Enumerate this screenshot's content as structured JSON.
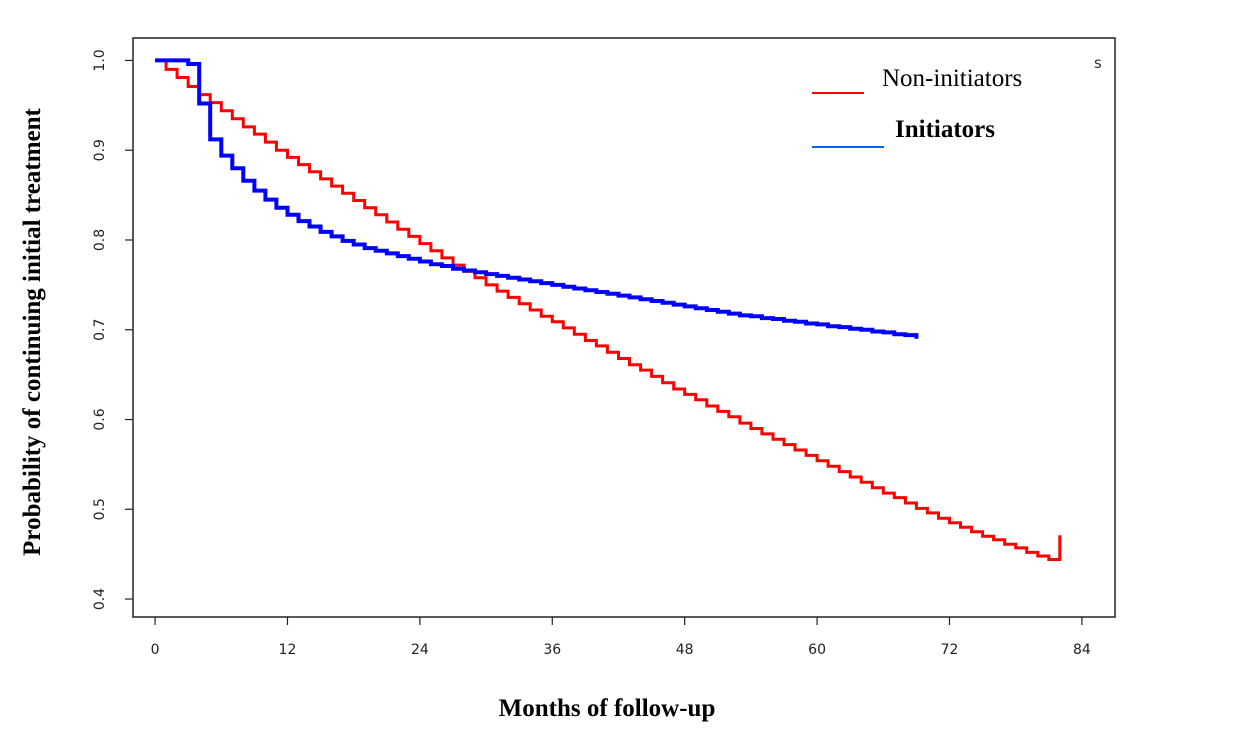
{
  "chart_data": {
    "type": "line",
    "step": true,
    "title": "",
    "xlabel": "Months of follow-up",
    "ylabel": "Probability of continuing initial treatment",
    "xlim": [
      -2,
      87
    ],
    "ylim": [
      0.38,
      1.025
    ],
    "xticks": [
      0,
      12,
      24,
      36,
      48,
      60,
      72,
      84
    ],
    "xtick_labels": [
      "0",
      "12",
      "24",
      "36",
      "48",
      "60",
      "72",
      "84"
    ],
    "yticks": [
      0.4,
      0.5,
      0.6,
      0.7,
      0.8,
      0.9,
      1.0
    ],
    "ytick_labels": [
      "0.4",
      "0.5",
      "0.6",
      "0.7",
      "0.8",
      "0.9",
      "1.0"
    ],
    "grid": false,
    "legend_position": "top-right",
    "legend_fragment": "s",
    "series": [
      {
        "name": "Non-initiators",
        "color": "#ff0000",
        "bold_label": false,
        "x": [
          0,
          1,
          2,
          3,
          4,
          5,
          6,
          7,
          8,
          9,
          10,
          11,
          12,
          13,
          14,
          15,
          16,
          17,
          18,
          19,
          20,
          21,
          22,
          23,
          24,
          25,
          26,
          27,
          28,
          29,
          30,
          31,
          32,
          33,
          34,
          35,
          36,
          37,
          38,
          39,
          40,
          41,
          42,
          43,
          44,
          45,
          46,
          47,
          48,
          49,
          50,
          51,
          52,
          53,
          54,
          55,
          56,
          57,
          58,
          59,
          60,
          61,
          62,
          63,
          64,
          65,
          66,
          67,
          68,
          69,
          70,
          71,
          72,
          73,
          74,
          75,
          76,
          77,
          78,
          79,
          80,
          81,
          82
        ],
        "y": [
          1.0,
          0.99,
          0.981,
          0.971,
          0.962,
          0.953,
          0.944,
          0.935,
          0.926,
          0.918,
          0.909,
          0.9,
          0.892,
          0.884,
          0.876,
          0.868,
          0.86,
          0.852,
          0.844,
          0.836,
          0.828,
          0.82,
          0.812,
          0.804,
          0.796,
          0.788,
          0.78,
          0.772,
          0.765,
          0.758,
          0.75,
          0.743,
          0.736,
          0.729,
          0.722,
          0.715,
          0.709,
          0.702,
          0.695,
          0.688,
          0.682,
          0.675,
          0.668,
          0.661,
          0.655,
          0.648,
          0.641,
          0.634,
          0.628,
          0.622,
          0.615,
          0.609,
          0.603,
          0.596,
          0.59,
          0.584,
          0.578,
          0.572,
          0.566,
          0.56,
          0.554,
          0.548,
          0.542,
          0.536,
          0.53,
          0.524,
          0.518,
          0.513,
          0.507,
          0.501,
          0.496,
          0.49,
          0.485,
          0.48,
          0.475,
          0.47,
          0.466,
          0.461,
          0.457,
          0.452,
          0.448,
          0.444,
          0.471
        ]
      },
      {
        "name": "Initiators",
        "color": "#0000ff",
        "bold_label": true,
        "x": [
          0,
          1,
          2,
          3,
          4,
          5,
          6,
          7,
          8,
          9,
          10,
          11,
          12,
          13,
          14,
          15,
          16,
          17,
          18,
          19,
          20,
          21,
          22,
          23,
          24,
          25,
          26,
          27,
          28,
          29,
          30,
          31,
          32,
          33,
          34,
          35,
          36,
          37,
          38,
          39,
          40,
          41,
          42,
          43,
          44,
          45,
          46,
          47,
          48,
          49,
          50,
          51,
          52,
          53,
          54,
          55,
          56,
          57,
          58,
          59,
          60,
          61,
          62,
          63,
          64,
          65,
          66,
          67,
          68,
          69
        ],
        "y": [
          1.0,
          1.0,
          1.0,
          0.996,
          0.952,
          0.912,
          0.894,
          0.88,
          0.866,
          0.855,
          0.845,
          0.836,
          0.828,
          0.821,
          0.815,
          0.809,
          0.804,
          0.799,
          0.795,
          0.791,
          0.788,
          0.785,
          0.782,
          0.779,
          0.776,
          0.773,
          0.771,
          0.768,
          0.766,
          0.764,
          0.762,
          0.76,
          0.758,
          0.756,
          0.754,
          0.752,
          0.75,
          0.748,
          0.746,
          0.744,
          0.742,
          0.74,
          0.738,
          0.736,
          0.734,
          0.732,
          0.73,
          0.728,
          0.726,
          0.724,
          0.722,
          0.72,
          0.718,
          0.716,
          0.715,
          0.713,
          0.712,
          0.71,
          0.709,
          0.707,
          0.706,
          0.704,
          0.703,
          0.701,
          0.7,
          0.698,
          0.697,
          0.695,
          0.694,
          0.69
        ]
      }
    ]
  }
}
